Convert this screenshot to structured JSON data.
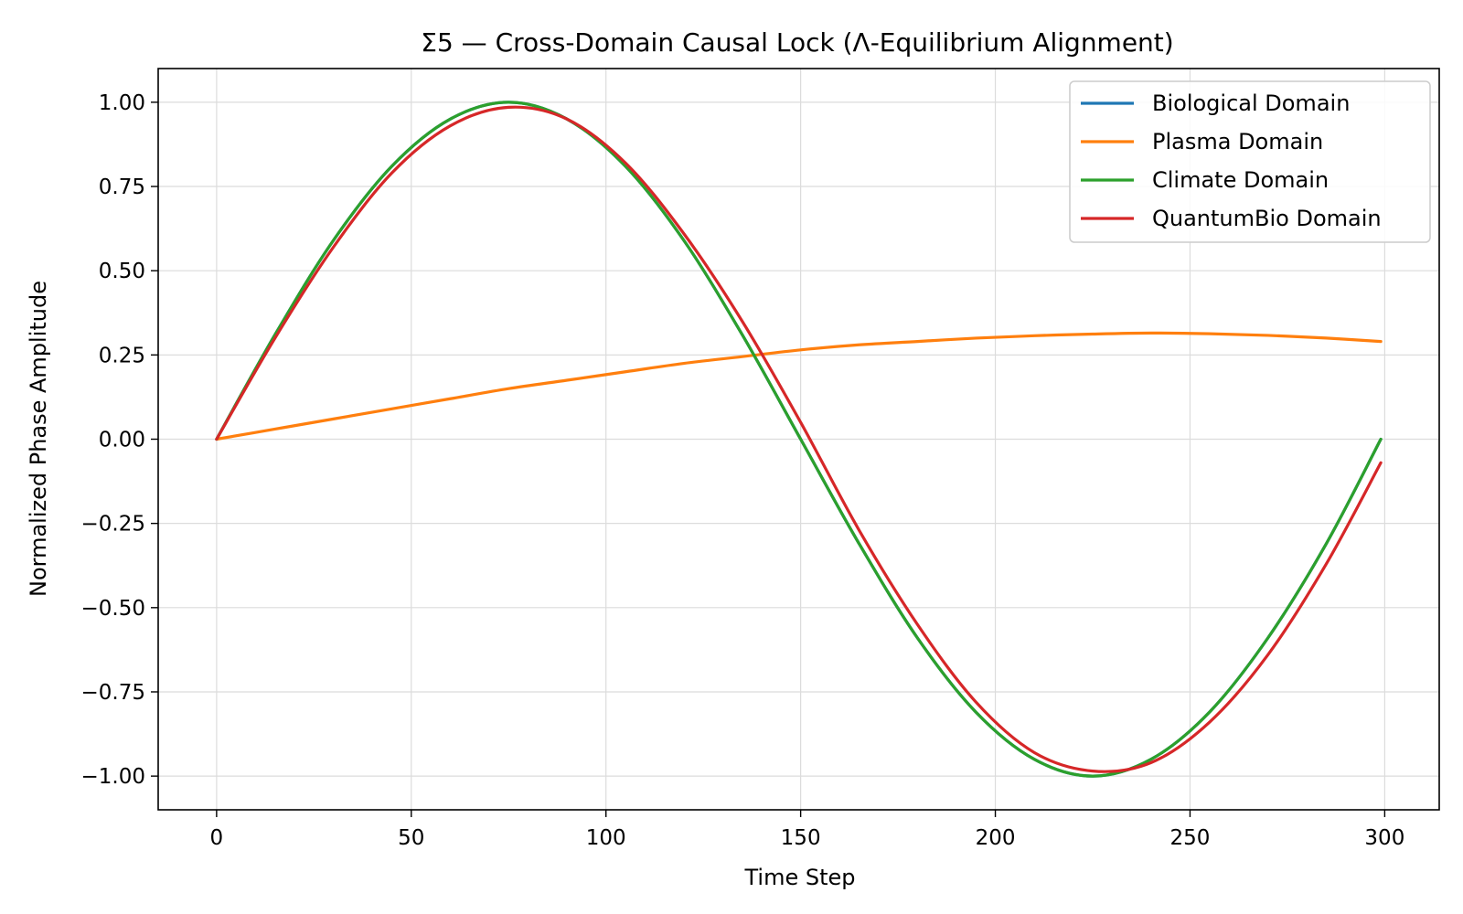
{
  "chart_data": {
    "type": "line",
    "title": "Σ5 — Cross-Domain Causal Lock (Λ-Equilibrium Alignment)",
    "xlabel": "Time Step",
    "ylabel": "Normalized Phase Amplitude",
    "xlim": [
      -15,
      314
    ],
    "ylim": [
      -1.1,
      1.1
    ],
    "x_ticks": [
      0,
      50,
      100,
      150,
      200,
      250,
      300
    ],
    "x_tick_labels": [
      "0",
      "50",
      "100",
      "150",
      "200",
      "250",
      "300"
    ],
    "y_ticks": [
      1.0,
      0.75,
      0.5,
      0.25,
      0.0,
      -0.25,
      -0.5,
      -0.75,
      -1.0
    ],
    "y_tick_labels": [
      "1.00",
      "0.75",
      "0.50",
      "0.25",
      "0.00",
      "−0.25",
      "−0.50",
      "−0.75",
      "−1.00"
    ],
    "grid": true,
    "legend_position": "top-right",
    "x": [
      0,
      15,
      30,
      45,
      60,
      75,
      90,
      105,
      120,
      135,
      150,
      165,
      180,
      195,
      210,
      225,
      240,
      255,
      270,
      285,
      299
    ],
    "series": [
      {
        "name": "Biological Domain",
        "color": "#1f77b4",
        "values": [
          0.0,
          0.31,
          0.59,
          0.81,
          0.95,
          1.0,
          0.95,
          0.81,
          0.59,
          0.31,
          0.0,
          -0.31,
          -0.59,
          -0.81,
          -0.95,
          -1.0,
          -0.95,
          -0.81,
          -0.59,
          -0.31,
          0.0
        ]
      },
      {
        "name": "Plasma Domain",
        "color": "#ff7f0e",
        "values": [
          0.0,
          0.03,
          0.06,
          0.09,
          0.12,
          0.15,
          0.175,
          0.2,
          0.225,
          0.245,
          0.265,
          0.28,
          0.29,
          0.3,
          0.307,
          0.312,
          0.315,
          0.313,
          0.308,
          0.3,
          0.29
        ]
      },
      {
        "name": "Climate Domain",
        "color": "#2ca02c",
        "values": [
          0.0,
          0.31,
          0.59,
          0.81,
          0.95,
          1.0,
          0.95,
          0.81,
          0.59,
          0.31,
          0.0,
          -0.31,
          -0.59,
          -0.81,
          -0.95,
          -1.0,
          -0.95,
          -0.81,
          -0.59,
          -0.31,
          0.0
        ]
      },
      {
        "name": "QuantumBio Domain",
        "color": "#d62728",
        "values": [
          0.0,
          0.3,
          0.57,
          0.79,
          0.93,
          0.985,
          0.95,
          0.82,
          0.61,
          0.35,
          0.05,
          -0.27,
          -0.55,
          -0.78,
          -0.93,
          -0.985,
          -0.96,
          -0.84,
          -0.64,
          -0.37,
          -0.07
        ]
      }
    ]
  }
}
